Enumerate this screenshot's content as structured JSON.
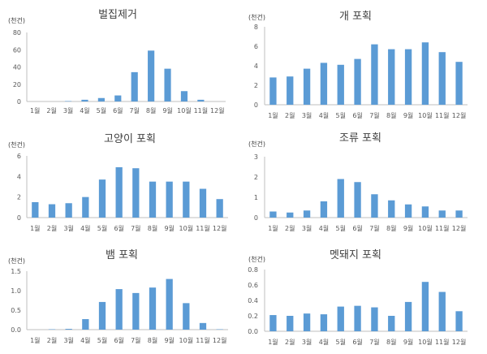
{
  "chart_data": [
    {
      "type": "bar",
      "title": "벌집제거",
      "ylabel": "(천건)",
      "categories": [
        "1월",
        "2월",
        "3월",
        "4월",
        "5월",
        "6월",
        "7월",
        "8월",
        "9월",
        "10월",
        "11월",
        "12월"
      ],
      "values": [
        0,
        0,
        0.5,
        2,
        4,
        7,
        34,
        59,
        38,
        12,
        2,
        0
      ],
      "ylim": [
        0,
        80
      ],
      "yticks": [
        0,
        20,
        40,
        60,
        80
      ],
      "grid": false,
      "color": "#5b9bd5"
    },
    {
      "type": "bar",
      "title": "개 포획",
      "ylabel": "(천건)",
      "categories": [
        "1월",
        "2월",
        "3월",
        "4월",
        "5월",
        "6월",
        "7월",
        "8월",
        "9월",
        "10월",
        "11월",
        "12월"
      ],
      "values": [
        2.8,
        2.9,
        3.7,
        4.3,
        4.1,
        4.7,
        6.2,
        5.7,
        5.7,
        6.4,
        5.4,
        4.4
      ],
      "ylim": [
        0,
        8
      ],
      "yticks": [
        0,
        2,
        4,
        6,
        8
      ],
      "grid": false,
      "color": "#5b9bd5"
    },
    {
      "type": "bar",
      "title": "고양이 포획",
      "ylabel": "(천건)",
      "categories": [
        "1월",
        "2월",
        "3월",
        "4월",
        "5월",
        "6월",
        "7월",
        "8월",
        "9월",
        "10월",
        "11월",
        "12월"
      ],
      "values": [
        1.5,
        1.3,
        1.4,
        2.0,
        3.7,
        4.9,
        4.8,
        3.5,
        3.5,
        3.5,
        2.8,
        1.8
      ],
      "ylim": [
        0,
        6
      ],
      "yticks": [
        0,
        2,
        4,
        6
      ],
      "grid": false,
      "color": "#5b9bd5"
    },
    {
      "type": "bar",
      "title": "조류 포획",
      "ylabel": "(천건)",
      "categories": [
        "1월",
        "2월",
        "3월",
        "4월",
        "5월",
        "6월",
        "7월",
        "8월",
        "9월",
        "10월",
        "11월",
        "12월"
      ],
      "values": [
        0.3,
        0.25,
        0.35,
        0.8,
        1.9,
        1.75,
        1.15,
        0.85,
        0.65,
        0.55,
        0.35,
        0.35
      ],
      "ylim": [
        0,
        3
      ],
      "yticks": [
        0,
        1,
        2,
        3
      ],
      "grid": false,
      "color": "#5b9bd5"
    },
    {
      "type": "bar",
      "title": "뱀 포획",
      "ylabel": "(천건)",
      "categories": [
        "1월",
        "2월",
        "3월",
        "4월",
        "5월",
        "6월",
        "7월",
        "8월",
        "9월",
        "10월",
        "11월",
        "12월"
      ],
      "values": [
        0,
        0.01,
        0.02,
        0.27,
        0.71,
        1.04,
        0.94,
        1.08,
        1.3,
        0.68,
        0.17,
        0.01
      ],
      "ylim": [
        0,
        1.5
      ],
      "yticks": [
        "0.0",
        "0.5",
        "1.0",
        "1.5"
      ],
      "grid": false,
      "color": "#5b9bd5"
    },
    {
      "type": "bar",
      "title": "멧돼지 포획",
      "ylabel": "(천건)",
      "categories": [
        "1월",
        "2월",
        "3월",
        "4월",
        "5월",
        "6월",
        "7월",
        "8월",
        "9월",
        "10월",
        "11월",
        "12월"
      ],
      "values": [
        0.21,
        0.2,
        0.23,
        0.22,
        0.32,
        0.33,
        0.31,
        0.2,
        0.38,
        0.64,
        0.51,
        0.26
      ],
      "ylim": [
        0,
        0.8
      ],
      "yticks": [
        "0.0",
        "0.2",
        "0.4",
        "0.6",
        "0.8"
      ],
      "grid": false,
      "color": "#5b9bd5"
    }
  ]
}
